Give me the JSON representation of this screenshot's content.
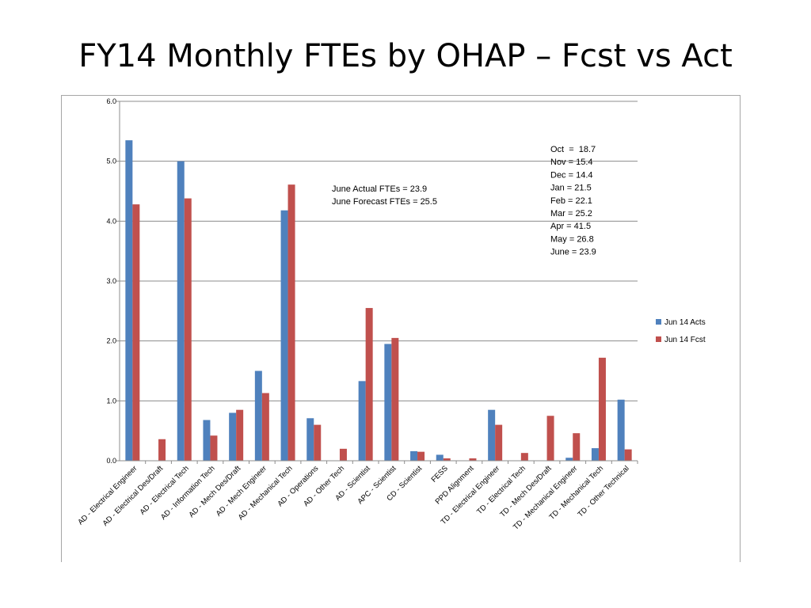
{
  "slide": {
    "title": "FY14 Monthly FTEs by OHAP – Fcst vs Act"
  },
  "chart_data": {
    "type": "bar",
    "categories": [
      "AD - Electrical Engineer",
      "AD - Electrical Des/Draft",
      "AD - Electrical Tech",
      "AD - Information Tech",
      "AD - Mech Des/Draft",
      "AD - Mech Engineer",
      "AD - Mechanical Tech",
      "AD - Operations",
      "AD - Other Tech",
      "AD - Scientist",
      "APC - Scientist",
      "CD - Scientist",
      "FESS",
      "PPD Alignment",
      "TD - Electrical Engineer",
      "TD - Electrical Tech",
      "TD - Mech Des/Draft",
      "TD - Mechanical Engineer",
      "TD - Mechanical Tech",
      "TD - Other Technical"
    ],
    "series": [
      {
        "name": "Jun 14 Acts",
        "color": "#4f81bd",
        "values": [
          5.35,
          0.0,
          5.0,
          0.68,
          0.8,
          1.5,
          4.18,
          0.71,
          0.0,
          1.33,
          1.95,
          0.16,
          0.1,
          0.0,
          0.85,
          0.0,
          0.0,
          0.05,
          0.21,
          1.02
        ]
      },
      {
        "name": "Jun 14 Fcst",
        "color": "#c0504d",
        "values": [
          4.28,
          0.36,
          4.38,
          0.42,
          0.85,
          1.13,
          4.61,
          0.6,
          0.2,
          2.55,
          2.05,
          0.15,
          0.04,
          0.04,
          0.6,
          0.13,
          0.75,
          0.46,
          1.72,
          0.19
        ]
      }
    ],
    "ylim": [
      0,
      6
    ],
    "yticks": [
      "0.0",
      "1.0",
      "2.0",
      "3.0",
      "4.0",
      "5.0",
      "6.0"
    ],
    "grid": true,
    "legend": "right",
    "annotations": {
      "june_totals": [
        "June Actual FTEs = 23.9",
        "June Forecast FTEs = 25.5"
      ],
      "monthly": [
        "Oct  =  18.7",
        "Nov = 15.4",
        "Dec = 14.4",
        "Jan = 21.5",
        "Feb = 22.1",
        "Mar = 25.2",
        "Apr = 41.5",
        "May = 26.8",
        "June = 23.9"
      ]
    }
  }
}
